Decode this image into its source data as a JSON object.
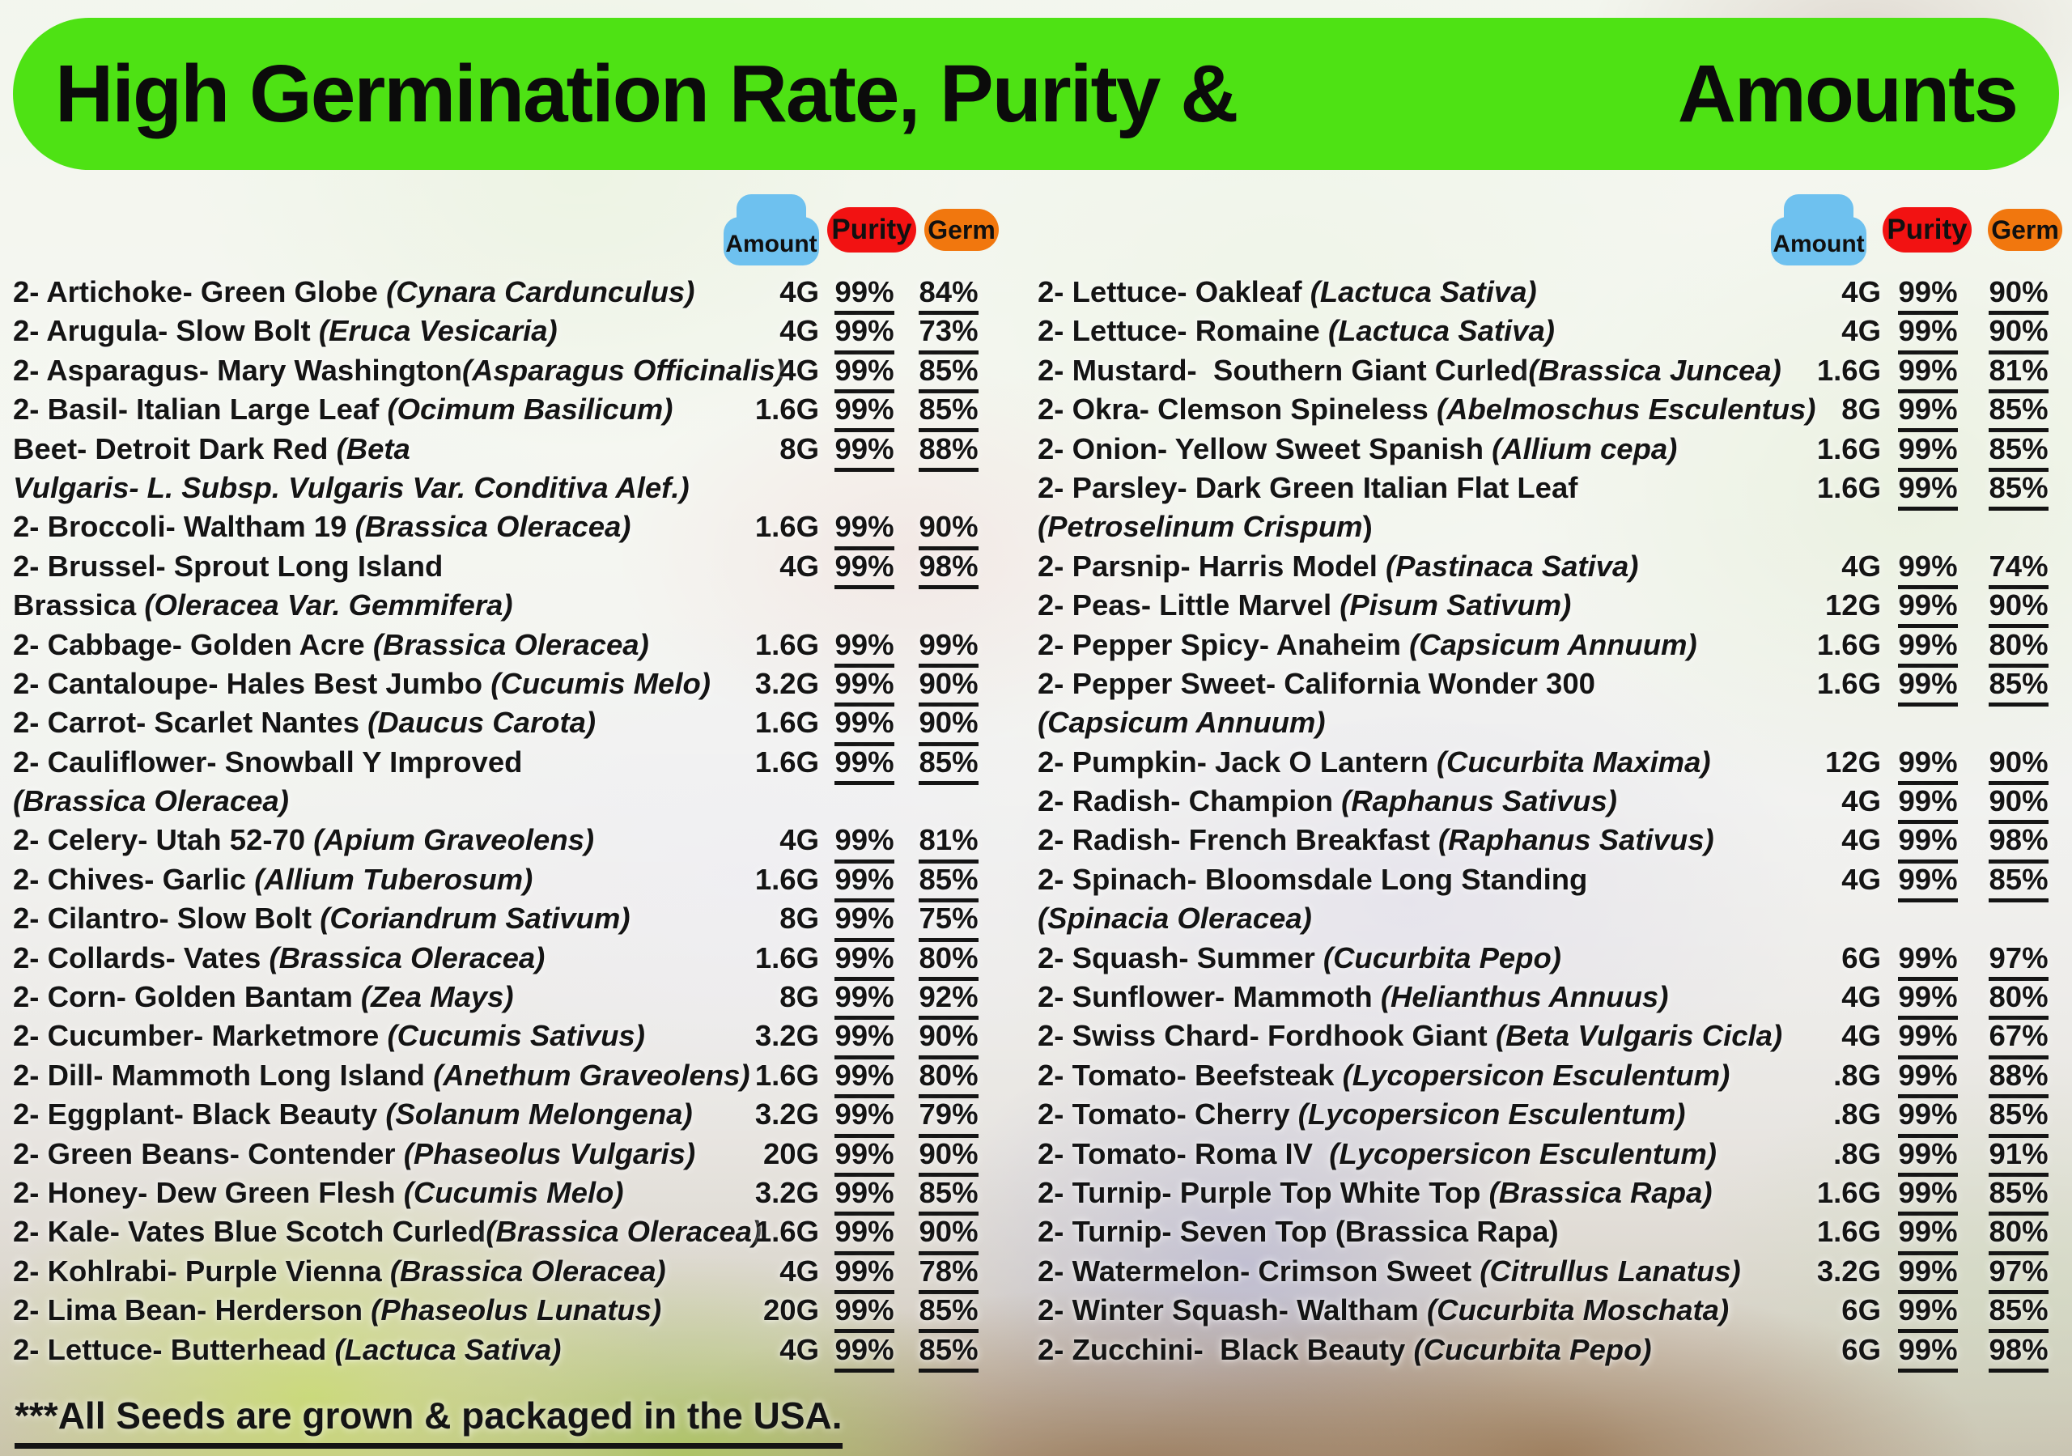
{
  "banner": {
    "title_left": "High Germination Rate, Purity &",
    "title_right": "Amounts"
  },
  "badges": {
    "amount": "Amount",
    "purity": "Purity",
    "germ": "Germ"
  },
  "footer": {
    "text": "***All Seeds are grown & packaged in the USA."
  },
  "colors": {
    "banner_green": "#4ee214",
    "amount_blue": "#6ec1ef",
    "purity_red": "#f21212",
    "germ_orange": "#f1770e",
    "text_black": "#141414"
  },
  "columns": {
    "left": {
      "rows": [
        {
          "name": [
            [
              "2- Artichoke- Green Globe ",
              0
            ],
            [
              "(Cynara Cardunculus)",
              1
            ]
          ],
          "amount": "4G",
          "purity": "99%",
          "germ": "84%"
        },
        {
          "name": [
            [
              "2- Arugula- Slow Bolt ",
              0
            ],
            [
              "(Eruca Vesicaria)",
              1
            ]
          ],
          "amount": "4G",
          "purity": "99%",
          "germ": "73%"
        },
        {
          "name": [
            [
              "2- Asparagus- Mary Washington",
              0
            ],
            [
              "(Asparagus Officinalis)",
              1
            ]
          ],
          "amount": "4G",
          "purity": "99%",
          "germ": "85%"
        },
        {
          "name": [
            [
              "2- Basil- Italian Large Leaf ",
              0
            ],
            [
              "(Ocimum Basilicum)",
              1
            ]
          ],
          "amount": "1.6G",
          "purity": "99%",
          "germ": "85%"
        },
        {
          "name": [
            [
              "Beet- Detroit Dark Red ",
              0
            ],
            [
              "(Beta",
              1
            ]
          ],
          "amount": "8G",
          "purity": "99%",
          "germ": "88%"
        },
        {
          "name": [
            [
              "Vulgaris- L. Subsp. Vulgaris Var. Conditiva Alef.)",
              1
            ]
          ]
        },
        {
          "name": [
            [
              "2- Broccoli- Waltham 19 ",
              0
            ],
            [
              "(Brassica Oleracea)",
              1
            ]
          ],
          "amount": "1.6G",
          "purity": "99%",
          "germ": "90%"
        },
        {
          "name": [
            [
              "2- Brussel- Sprout Long Island",
              0
            ]
          ],
          "amount": "4G",
          "purity": "99%",
          "germ": "98%"
        },
        {
          "name": [
            [
              "Brassica ",
              0
            ],
            [
              "(Oleracea Var. Gemmifera)",
              1
            ]
          ]
        },
        {
          "name": [
            [
              "2- Cabbage- Golden Acre ",
              0
            ],
            [
              "(Brassica Oleracea)",
              1
            ]
          ],
          "amount": "1.6G",
          "purity": "99%",
          "germ": "99%"
        },
        {
          "name": [
            [
              "2- Cantaloupe- Hales Best Jumbo ",
              0
            ],
            [
              "(Cucumis Melo)",
              1
            ]
          ],
          "amount": "3.2G",
          "purity": "99%",
          "germ": "90%"
        },
        {
          "name": [
            [
              "2- Carrot- Scarlet Nantes ",
              0
            ],
            [
              "(Daucus Carota)",
              1
            ]
          ],
          "amount": "1.6G",
          "purity": "99%",
          "germ": "90%"
        },
        {
          "name": [
            [
              "2- Cauliflower- Snowball Y Improved",
              0
            ]
          ],
          "amount": "1.6G",
          "purity": "99%",
          "germ": "85%"
        },
        {
          "name": [
            [
              "(Brassica Oleracea)",
              1
            ]
          ]
        },
        {
          "name": [
            [
              "2- Celery- Utah 52-70 ",
              0
            ],
            [
              "(Apium Graveolens)",
              1
            ]
          ],
          "amount": "4G",
          "purity": "99%",
          "germ": "81%"
        },
        {
          "name": [
            [
              "2- Chives- Garlic ",
              0
            ],
            [
              "(Allium Tuberosum)",
              1
            ]
          ],
          "amount": "1.6G",
          "purity": "99%",
          "germ": "85%"
        },
        {
          "name": [
            [
              "2- Cilantro- Slow Bolt ",
              0
            ],
            [
              "(Coriandrum Sativum)",
              1
            ]
          ],
          "amount": "8G",
          "purity": "99%",
          "germ": "75%"
        },
        {
          "name": [
            [
              "2- Collards- Vates ",
              0
            ],
            [
              "(Brassica Oleracea)",
              1
            ]
          ],
          "amount": "1.6G",
          "purity": "99%",
          "germ": "80%"
        },
        {
          "name": [
            [
              "2- Corn- Golden Bantam ",
              0
            ],
            [
              "(Zea Mays)",
              1
            ]
          ],
          "amount": "8G",
          "purity": "99%",
          "germ": "92%"
        },
        {
          "name": [
            [
              "2- Cucumber- Marketmore ",
              0
            ],
            [
              "(Cucumis Sativus)",
              1
            ]
          ],
          "amount": "3.2G",
          "purity": "99%",
          "germ": "90%"
        },
        {
          "name": [
            [
              "2- Dill- Mammoth Long Island ",
              0
            ],
            [
              "(Anethum Graveolens)",
              1
            ]
          ],
          "amount": "1.6G",
          "purity": "99%",
          "germ": "80%"
        },
        {
          "name": [
            [
              "2- Eggplant- Black Beauty ",
              0
            ],
            [
              "(Solanum Melongena)",
              1
            ]
          ],
          "amount": "3.2G",
          "purity": "99%",
          "germ": "79%"
        },
        {
          "name": [
            [
              "2- Green Beans- Contender ",
              0
            ],
            [
              "(Phaseolus Vulgaris)",
              1
            ]
          ],
          "amount": "20G",
          "purity": "99%",
          "germ": "90%"
        },
        {
          "name": [
            [
              "2- Honey- Dew Green Flesh ",
              0
            ],
            [
              "(Cucumis Melo)",
              1
            ]
          ],
          "amount": "3.2G",
          "purity": "99%",
          "germ": "85%"
        },
        {
          "name": [
            [
              "2- Kale- Vates Blue Scotch Curled",
              0
            ],
            [
              "(Brassica Oleracea)",
              1
            ]
          ],
          "amount": "1.6G",
          "purity": "99%",
          "germ": "90%"
        },
        {
          "name": [
            [
              "2- Kohlrabi- Purple Vienna ",
              0
            ],
            [
              "(Brassica Oleracea)",
              1
            ]
          ],
          "amount": "4G",
          "purity": "99%",
          "germ": "78%"
        },
        {
          "name": [
            [
              "2- Lima Bean- Herderson ",
              0
            ],
            [
              "(Phaseolus Lunatus)",
              1
            ]
          ],
          "amount": "20G",
          "purity": "99%",
          "germ": "85%"
        },
        {
          "name": [
            [
              "2- Lettuce- Butterhead ",
              0
            ],
            [
              "(Lactuca Sativa)",
              1
            ]
          ],
          "amount": "4G",
          "purity": "99%",
          "germ": "85%"
        }
      ]
    },
    "right": {
      "rows": [
        {
          "name": [
            [
              "2- Lettuce- Oakleaf ",
              0
            ],
            [
              "(Lactuca Sativa)",
              1
            ]
          ],
          "amount": "4G",
          "purity": "99%",
          "germ": "90%"
        },
        {
          "name": [
            [
              "2- Lettuce- Romaine ",
              0
            ],
            [
              "(Lactuca Sativa)",
              1
            ]
          ],
          "amount": "4G",
          "purity": "99%",
          "germ": "90%"
        },
        {
          "name": [
            [
              "2- Mustard-  Southern Giant Curled",
              0
            ],
            [
              "(Brassica Juncea)",
              1
            ]
          ],
          "amount": "1.6G",
          "purity": "99%",
          "germ": "81%"
        },
        {
          "name": [
            [
              "2- Okra- Clemson Spineless ",
              0
            ],
            [
              "(Abelmoschus Esculentus)",
              1
            ]
          ],
          "amount": "8G",
          "purity": "99%",
          "germ": "85%"
        },
        {
          "name": [
            [
              "2- Onion- Yellow Sweet Spanish ",
              0
            ],
            [
              "(Allium cepa)",
              1
            ]
          ],
          "amount": "1.6G",
          "purity": "99%",
          "germ": "85%"
        },
        {
          "name": [
            [
              "2- Parsley- Dark Green Italian Flat Leaf",
              0
            ]
          ],
          "amount": "1.6G",
          "purity": "99%",
          "germ": "85%"
        },
        {
          "name": [
            [
              "(Petroselinum Crispum",
              1
            ],
            [
              ")",
              0
            ]
          ]
        },
        {
          "name": [
            [
              "2- Parsnip- Harris Model ",
              0
            ],
            [
              "(Pastinaca Sativa)",
              1
            ]
          ],
          "amount": "4G",
          "purity": "99%",
          "germ": "74%"
        },
        {
          "name": [
            [
              "2- Peas- Little Marvel ",
              0
            ],
            [
              "(Pisum Sativum)",
              1
            ]
          ],
          "amount": "12G",
          "purity": "99%",
          "germ": "90%"
        },
        {
          "name": [
            [
              "2- Pepper Spicy- Anaheim ",
              0
            ],
            [
              "(Capsicum Annuum)",
              1
            ]
          ],
          "amount": "1.6G",
          "purity": "99%",
          "germ": "80%"
        },
        {
          "name": [
            [
              "2- Pepper Sweet- California Wonder 300",
              0
            ]
          ],
          "amount": "1.6G",
          "purity": "99%",
          "germ": "85%"
        },
        {
          "name": [
            [
              "(Capsicum Annuum)",
              1
            ]
          ]
        },
        {
          "name": [
            [
              "2- Pumpkin- Jack O Lantern ",
              0
            ],
            [
              "(Cucurbita Maxima)",
              1
            ]
          ],
          "amount": "12G",
          "purity": "99%",
          "germ": "90%"
        },
        {
          "name": [
            [
              "2- Radish- Champion ",
              0
            ],
            [
              "(Raphanus Sativus)",
              1
            ]
          ],
          "amount": "4G",
          "purity": "99%",
          "germ": "90%"
        },
        {
          "name": [
            [
              "2- Radish- French Breakfast ",
              0
            ],
            [
              "(Raphanus Sativus)",
              1
            ]
          ],
          "amount": "4G",
          "purity": "99%",
          "germ": "98%"
        },
        {
          "name": [
            [
              "2- Spinach- Bloomsdale Long Standing",
              0
            ]
          ],
          "amount": "4G",
          "purity": "99%",
          "germ": "85%"
        },
        {
          "name": [
            [
              "(Spinacia Oleracea)",
              1
            ]
          ]
        },
        {
          "name": [
            [
              "2- Squash- Summer ",
              0
            ],
            [
              "(Cucurbita Pepo)",
              1
            ]
          ],
          "amount": "6G",
          "purity": "99%",
          "germ": "97%"
        },
        {
          "name": [
            [
              "2- Sunflower- Mammoth ",
              0
            ],
            [
              "(Helianthus Annuus)",
              1
            ]
          ],
          "amount": "4G",
          "purity": "99%",
          "germ": "80%"
        },
        {
          "name": [
            [
              "2- Swiss Chard- Fordhook Giant ",
              0
            ],
            [
              "(Beta Vulgaris Cicla)",
              1
            ]
          ],
          "amount": "4G",
          "purity": "99%",
          "germ": "67%"
        },
        {
          "name": [
            [
              "2- Tomato- Beefsteak ",
              0
            ],
            [
              "(Lycopersicon Esculentum)",
              1
            ]
          ],
          "amount": ".8G",
          "purity": "99%",
          "germ": "88%"
        },
        {
          "name": [
            [
              "2- Tomato- Cherry ",
              0
            ],
            [
              "(Lycopersicon Esculentum)",
              1
            ]
          ],
          "amount": ".8G",
          "purity": "99%",
          "germ": "85%"
        },
        {
          "name": [
            [
              "2- Tomato- Roma IV  ",
              0
            ],
            [
              "(Lycopersicon Esculentum)",
              1
            ]
          ],
          "amount": ".8G",
          "purity": "99%",
          "germ": "91%"
        },
        {
          "name": [
            [
              "2- Turnip- Purple Top White Top ",
              0
            ],
            [
              "(Brassica Rapa)",
              1
            ]
          ],
          "amount": "1.6G",
          "purity": "99%",
          "germ": "85%"
        },
        {
          "name": [
            [
              "2- Turnip- Seven Top (Brassica Rapa)",
              0
            ]
          ],
          "amount": "1.6G",
          "purity": "99%",
          "germ": "80%"
        },
        {
          "name": [
            [
              "2- Watermelon- Crimson Sweet ",
              0
            ],
            [
              "(Citrullus Lanatus)",
              1
            ]
          ],
          "amount": "3.2G",
          "purity": "99%",
          "germ": "97%"
        },
        {
          "name": [
            [
              "2- Winter Squash- Waltham ",
              0
            ],
            [
              "(Cucurbita Moschata)",
              1
            ]
          ],
          "amount": "6G",
          "purity": "99%",
          "germ": "85%"
        },
        {
          "name": [
            [
              "2- Zucchini-  Black Beauty ",
              0
            ],
            [
              "(Cucurbita Pepo)",
              1
            ]
          ],
          "amount": "6G",
          "purity": "99%",
          "germ": "98%"
        }
      ]
    }
  }
}
